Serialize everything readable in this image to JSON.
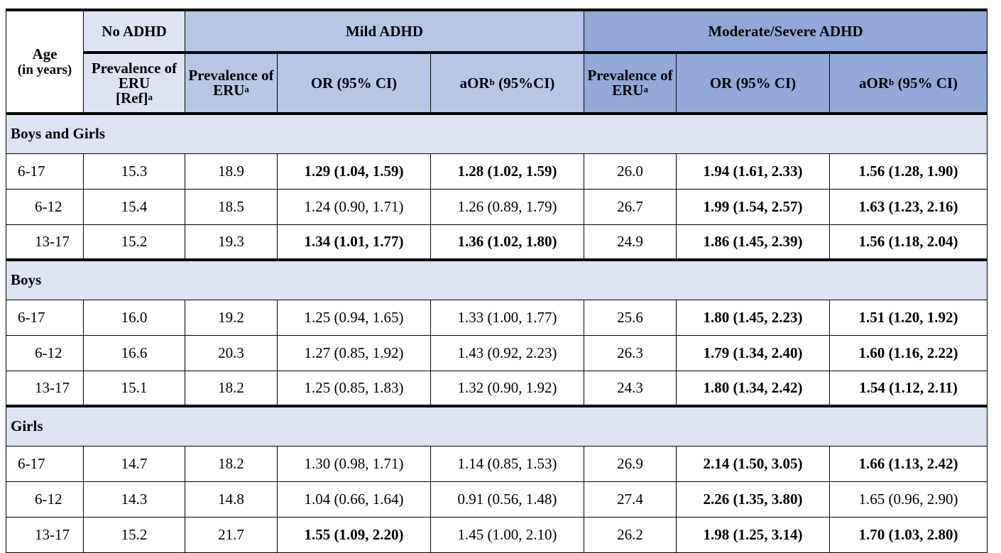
{
  "header": {
    "age_label": "Age",
    "age_sub": "(in years)",
    "groups": {
      "none": "No ADHD",
      "mild": "Mild ADHD",
      "mod": "Moderate/Severe ADHD"
    },
    "cols": {
      "none_prev": "Prevalence of ERU",
      "none_prev_ref": "[Ref]",
      "none_prev_sup": "a",
      "mild_prev": "Prevalence of ERU",
      "mild_prev_sup": "a",
      "mild_or": "OR (95% CI)",
      "mild_aor": "aOR",
      "mild_aor_sup": "b",
      "mild_aor_ci": " (95%CI)",
      "mod_prev": "Prevalence of ERU",
      "mod_prev_sup": "a",
      "mod_or": "OR (95% CI)",
      "mod_aor": "aOR",
      "mod_aor_sup": "b",
      "mod_aor_ci": " (95% CI)"
    }
  },
  "sections": [
    {
      "title": "Boys and Girls",
      "rows": [
        {
          "age": "6-17",
          "none": "15.3",
          "mild_prev": "18.9",
          "mild_or": "1.29 (1.04, 1.59)",
          "mild_aor": "1.28 (1.02, 1.59)",
          "mod_prev": "26.0",
          "mod_or": "1.94 (1.61, 2.33)",
          "mod_aor": "1.56 (1.28, 1.90)"
        },
        {
          "age": "6-12",
          "none": "15.4",
          "mild_prev": "18.5",
          "mild_or": "1.24 (0.90, 1.71)",
          "mild_aor": "1.26 (0.89, 1.79)",
          "mod_prev": "26.7",
          "mod_or": "1.99 (1.54, 2.57)",
          "mod_aor": "1.63 (1.23, 2.16)"
        },
        {
          "age": "13-17",
          "none": "15.2",
          "mild_prev": "19.3",
          "mild_or": "1.34 (1.01, 1.77)",
          "mild_aor": "1.36 (1.02, 1.80)",
          "mod_prev": "24.9",
          "mod_or": "1.86 (1.45, 2.39)",
          "mod_aor": "1.56 (1.18, 2.04)"
        }
      ]
    },
    {
      "title": "Boys",
      "rows": [
        {
          "age": "6-17",
          "none": "16.0",
          "mild_prev": "19.2",
          "mild_or": "1.25 (0.94, 1.65)",
          "mild_aor": "1.33 (1.00, 1.77)",
          "mod_prev": "25.6",
          "mod_or": "1.80 (1.45, 2.23)",
          "mod_aor": "1.51 (1.20, 1.92)"
        },
        {
          "age": "6-12",
          "none": "16.6",
          "mild_prev": "20.3",
          "mild_or": "1.27 (0.85, 1.92)",
          "mild_aor": "1.43 (0.92, 2.23)",
          "mod_prev": "26.3",
          "mod_or": "1.79 (1.34, 2.40)",
          "mod_aor": "1.60 (1.16, 2.22)"
        },
        {
          "age": "13-17",
          "none": "15.1",
          "mild_prev": "18.2",
          "mild_or": "1.25 (0.85, 1.83)",
          "mild_aor": "1.32 (0.90, 1.92)",
          "mod_prev": "24.3",
          "mod_or": "1.80 (1.34, 2.42)",
          "mod_aor": "1.54 (1.12, 2.11)"
        }
      ]
    },
    {
      "title": "Girls",
      "rows": [
        {
          "age": "6-17",
          "none": "14.7",
          "mild_prev": "18.2",
          "mild_or": "1.30 (0.98, 1.71)",
          "mild_aor": "1.14 (0.85, 1.53)",
          "mod_prev": "26.9",
          "mod_or": "2.14 (1.50, 3.05)",
          "mod_aor": "1.66 (1.13, 2.42)"
        },
        {
          "age": "6-12",
          "none": "14.3",
          "mild_prev": "14.8",
          "mild_or": "1.04 (0.66, 1.64)",
          "mild_aor": "0.91 (0.56, 1.48)",
          "mod_prev": "27.4",
          "mod_or": "2.26 (1.35, 3.80)",
          "mod_aor": "1.65 (0.96, 2.90)"
        },
        {
          "age": "13-17",
          "none": "15.2",
          "mild_prev": "21.7",
          "mild_or": "1.55 (1.09, 2.20)",
          "mild_aor": "1.45 (1.00, 2.10)",
          "mod_prev": "26.2",
          "mod_or": "1.98 (1.25, 3.14)",
          "mod_aor": "1.70 (1.03, 2.80)"
        }
      ]
    }
  ]
}
